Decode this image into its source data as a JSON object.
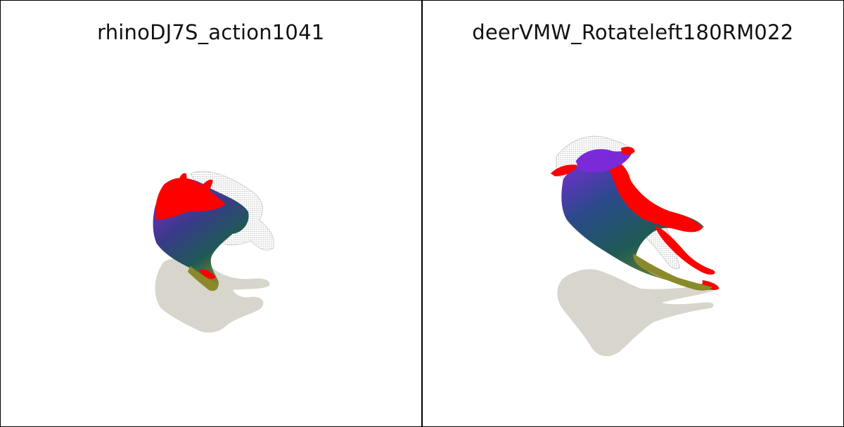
{
  "panels": [
    {
      "title": "rhinoDJ7S_action1041"
    },
    {
      "title": "deerVMW_Rotateleft180RM022"
    }
  ],
  "colors": {
    "shadow": "#d8d5cd",
    "red": "#ff0000",
    "purple": "#8a2be2",
    "teal": "#1e5a55",
    "olive": "#7a7a2a",
    "wire": "#c8c8c8"
  }
}
